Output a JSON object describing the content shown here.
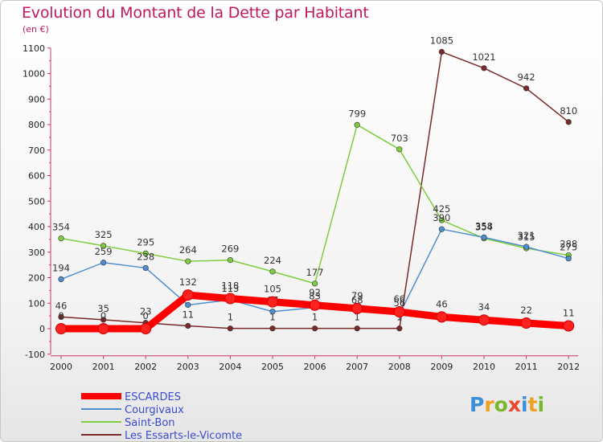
{
  "title": "Evolution du Montant de la Dette par Habitant",
  "subtitle": "(en €)",
  "brand": "Proxiti",
  "brand_colors": [
    "#3a8fd9",
    "#f0a020",
    "#7ab72c",
    "#e8462e",
    "#3a8fd9",
    "#f0a020",
    "#7ab72c"
  ],
  "chart_data": {
    "type": "line",
    "categories": [
      "2000",
      "2001",
      "2002",
      "2003",
      "2004",
      "2005",
      "2006",
      "2007",
      "2008",
      "2009",
      "2010",
      "2011",
      "2012"
    ],
    "ylim": [
      -100,
      1100
    ],
    "yticks": [
      -100,
      0,
      100,
      200,
      300,
      400,
      500,
      600,
      700,
      800,
      900,
      1000,
      1100
    ],
    "grid": false,
    "legend_position": "bottom-left",
    "series": [
      {
        "name": "ESCARDES",
        "color": "#ff0000",
        "values": [
          0,
          0,
          0,
          132,
          118,
          105,
          92,
          79,
          66,
          46,
          34,
          22,
          11
        ],
        "labels": [
          "0",
          "0",
          "0",
          "132",
          "118",
          "105",
          "92",
          "79",
          "66",
          "46",
          "34",
          "22",
          "11"
        ]
      },
      {
        "name": "Courgivaux",
        "color": "#4e8fd0",
        "values": [
          194,
          259,
          238,
          93,
          113,
          67,
          83,
          68,
          56,
          390,
          358,
          321,
          275
        ],
        "labels": [
          "194",
          "259",
          "238",
          "",
          "113",
          "67",
          "83",
          "68",
          "56",
          "390",
          "358",
          "321",
          "275"
        ]
      },
      {
        "name": "Saint-Bon",
        "color": "#7dcd3e",
        "values": [
          354,
          325,
          295,
          264,
          269,
          224,
          177,
          799,
          703,
          425,
          354,
          315,
          288
        ],
        "labels": [
          "354",
          "325",
          "295",
          "264",
          "269",
          "224",
          "177",
          "799",
          "703",
          "425",
          "354",
          "315",
          "288"
        ]
      },
      {
        "name": "Les Essarts-le-Vicomte",
        "color": "#7a2a2a",
        "values": [
          46,
          35,
          23,
          11,
          1,
          1,
          1,
          1,
          1,
          1085,
          1021,
          942,
          810
        ],
        "labels": [
          "46",
          "35",
          "23",
          "11",
          "1",
          "1",
          "1",
          "1",
          "1",
          "1085",
          "1021",
          "942",
          "810"
        ]
      }
    ]
  }
}
